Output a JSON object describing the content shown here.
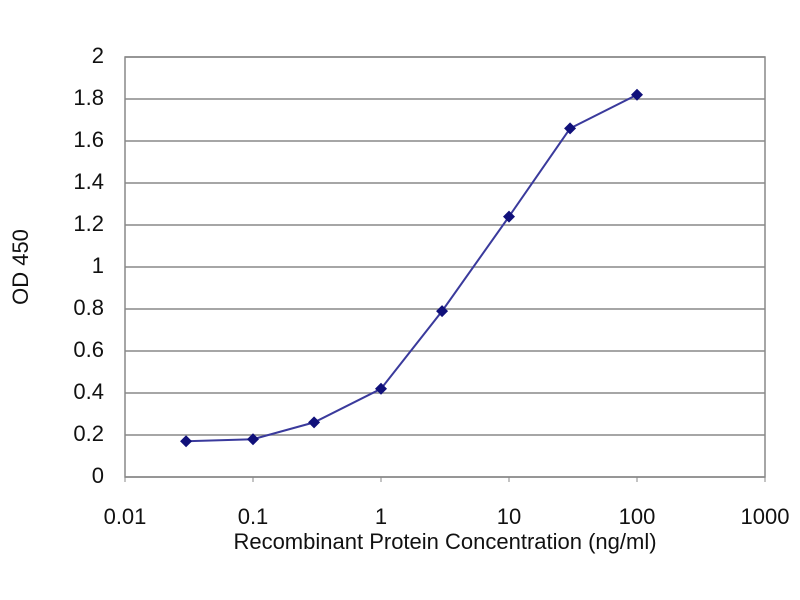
{
  "chart_data": {
    "type": "line",
    "x_label": "Recombinant Protein Concentration (ng/ml)",
    "y_label": "OD 450",
    "x": [
      0.03,
      0.1,
      0.3,
      1,
      3,
      10,
      30,
      100
    ],
    "series": [
      {
        "color": "#3a3a9c",
        "marker_color": "#10107a",
        "values": [
          0.17,
          0.18,
          0.26,
          0.42,
          0.79,
          1.24,
          1.66,
          1.82
        ]
      }
    ],
    "x_log": true,
    "xlim": [
      0.01,
      1000
    ],
    "xticks": [
      0.01,
      0.1,
      1,
      10,
      100,
      1000
    ],
    "ylim": [
      0,
      2
    ],
    "yticks": [
      0,
      0.2,
      0.4,
      0.6,
      0.8,
      1,
      1.2,
      1.4,
      1.6,
      1.8,
      2
    ],
    "grid": true
  }
}
